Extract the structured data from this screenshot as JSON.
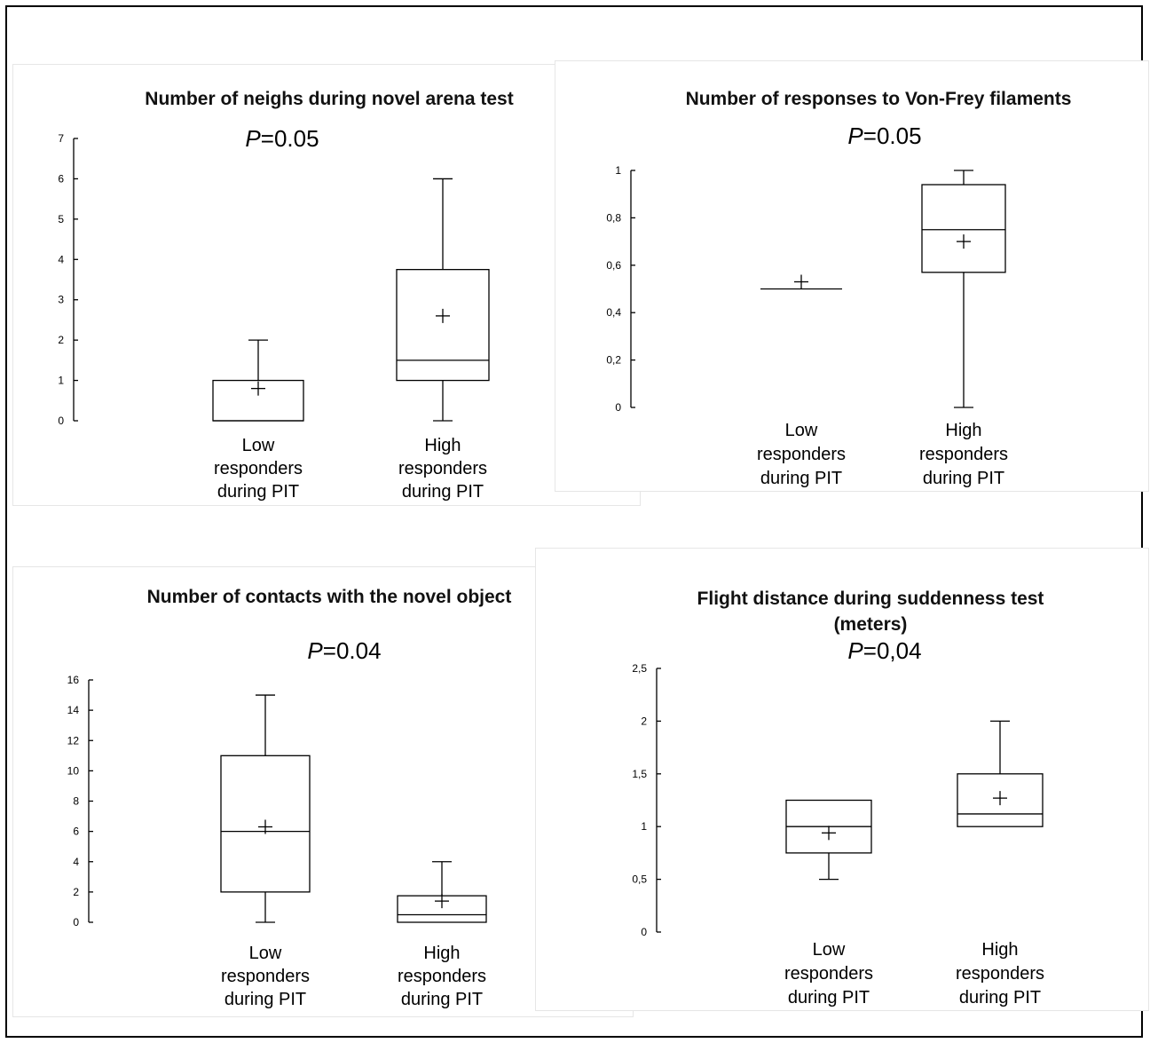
{
  "chart_data": [
    {
      "type": "box",
      "title": "Number of neighs during novel arena test",
      "p_label": "P",
      "p_rest": "=0.05",
      "ylim": [
        0,
        7
      ],
      "yticks": [
        {
          "v": 0,
          "label": "0"
        },
        {
          "v": 1,
          "label": "1"
        },
        {
          "v": 2,
          "label": "2"
        },
        {
          "v": 3,
          "label": "3"
        },
        {
          "v": 4,
          "label": "4"
        },
        {
          "v": 5,
          "label": "5"
        },
        {
          "v": 6,
          "label": "6"
        },
        {
          "v": 7,
          "label": "7"
        }
      ],
      "categories": [
        {
          "label_lines": [
            "Low",
            "responders",
            "during PIT"
          ],
          "min": 0,
          "q1": 0,
          "median": 0,
          "q3": 1,
          "max": 2,
          "mean": 0.8
        },
        {
          "label_lines": [
            "High",
            "responders",
            "during PIT"
          ],
          "min": 0,
          "q1": 1,
          "median": 1.5,
          "q3": 3.75,
          "max": 6,
          "mean": 2.6
        }
      ]
    },
    {
      "type": "box",
      "title": "Number of responses to Von-Frey filaments",
      "p_label": "P",
      "p_rest": "=0.05",
      "ylim": [
        0,
        1
      ],
      "yticks": [
        {
          "v": 0,
          "label": "0"
        },
        {
          "v": 0.2,
          "label": "0,2"
        },
        {
          "v": 0.4,
          "label": "0,4"
        },
        {
          "v": 0.6,
          "label": "0,6"
        },
        {
          "v": 0.8,
          "label": "0,8"
        },
        {
          "v": 1,
          "label": "1"
        }
      ],
      "categories": [
        {
          "label_lines": [
            "Low",
            "responders",
            "during PIT"
          ],
          "min": 0.5,
          "q1": 0.5,
          "median": 0.5,
          "q3": 0.5,
          "max": 0.5,
          "mean": 0.53
        },
        {
          "label_lines": [
            "High",
            "responders",
            "during PIT"
          ],
          "min": 0,
          "q1": 0.57,
          "median": 0.75,
          "q3": 0.94,
          "max": 1,
          "mean": 0.7
        }
      ]
    },
    {
      "type": "box",
      "title": "Number of contacts with the novel object",
      "p_label": "P",
      "p_rest": "=0.04",
      "ylim": [
        0,
        16
      ],
      "yticks": [
        {
          "v": 0,
          "label": "0"
        },
        {
          "v": 2,
          "label": "2"
        },
        {
          "v": 4,
          "label": "4"
        },
        {
          "v": 6,
          "label": "6"
        },
        {
          "v": 8,
          "label": "8"
        },
        {
          "v": 10,
          "label": "10"
        },
        {
          "v": 12,
          "label": "12"
        },
        {
          "v": 14,
          "label": "14"
        },
        {
          "v": 16,
          "label": "16"
        }
      ],
      "categories": [
        {
          "label_lines": [
            "Low",
            "responders",
            "during PIT"
          ],
          "min": 0,
          "q1": 2,
          "median": 6,
          "q3": 11,
          "max": 15,
          "mean": 6.3
        },
        {
          "label_lines": [
            "High",
            "responders",
            "during PIT"
          ],
          "min": 0,
          "q1": 0,
          "median": 0.5,
          "q3": 1.75,
          "max": 4,
          "mean": 1.4
        }
      ]
    },
    {
      "type": "box",
      "title": "Flight distance during suddenness test",
      "title_line2": "(meters)",
      "p_label": "P",
      "p_rest": "=0,04",
      "ylim": [
        0,
        2.5
      ],
      "yticks": [
        {
          "v": 0,
          "label": "0"
        },
        {
          "v": 0.5,
          "label": "0,5"
        },
        {
          "v": 1,
          "label": "1"
        },
        {
          "v": 1.5,
          "label": "1,5"
        },
        {
          "v": 2,
          "label": "2"
        },
        {
          "v": 2.5,
          "label": "2,5"
        }
      ],
      "categories": [
        {
          "label_lines": [
            "Low",
            "responders",
            "during PIT"
          ],
          "min": 0.5,
          "q1": 0.75,
          "median": 1,
          "q3": 1.25,
          "max": 1.25,
          "mean": 0.94
        },
        {
          "label_lines": [
            "High",
            "responders",
            "during PIT"
          ],
          "min": 1,
          "q1": 1,
          "median": 1.12,
          "q3": 1.5,
          "max": 2,
          "mean": 1.27
        }
      ]
    }
  ]
}
